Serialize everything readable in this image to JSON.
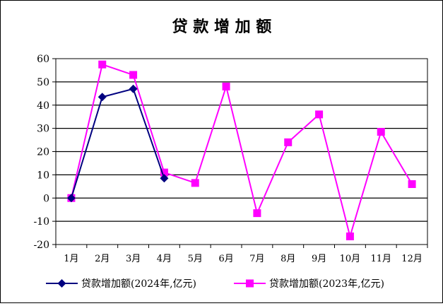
{
  "chart_data": {
    "type": "line",
    "title": "贷 款 增 加 额",
    "categories": [
      "1月",
      "2月",
      "3月",
      "4月",
      "5月",
      "6月",
      "7月",
      "8月",
      "9月",
      "10月",
      "11月",
      "12月"
    ],
    "ylim": [
      -20,
      60
    ],
    "yticks": [
      "60",
      "50",
      "40",
      "30",
      "20",
      "10",
      "0",
      "-10",
      "-20"
    ],
    "grid": true,
    "legend_position": "bottom",
    "series": [
      {
        "name": "贷款增加额(2024年,亿元)",
        "color": "#000080",
        "marker": "diamond",
        "values": [
          0,
          43.5,
          47,
          8.5,
          null,
          null,
          null,
          null,
          null,
          null,
          null,
          null
        ]
      },
      {
        "name": "贷款增加额(2023年,亿元)",
        "color": "#ff00ff",
        "marker": "square",
        "values": [
          0,
          57.5,
          53,
          11,
          6.5,
          48,
          -6.5,
          24,
          36,
          -16.5,
          28.5,
          6
        ]
      }
    ]
  }
}
